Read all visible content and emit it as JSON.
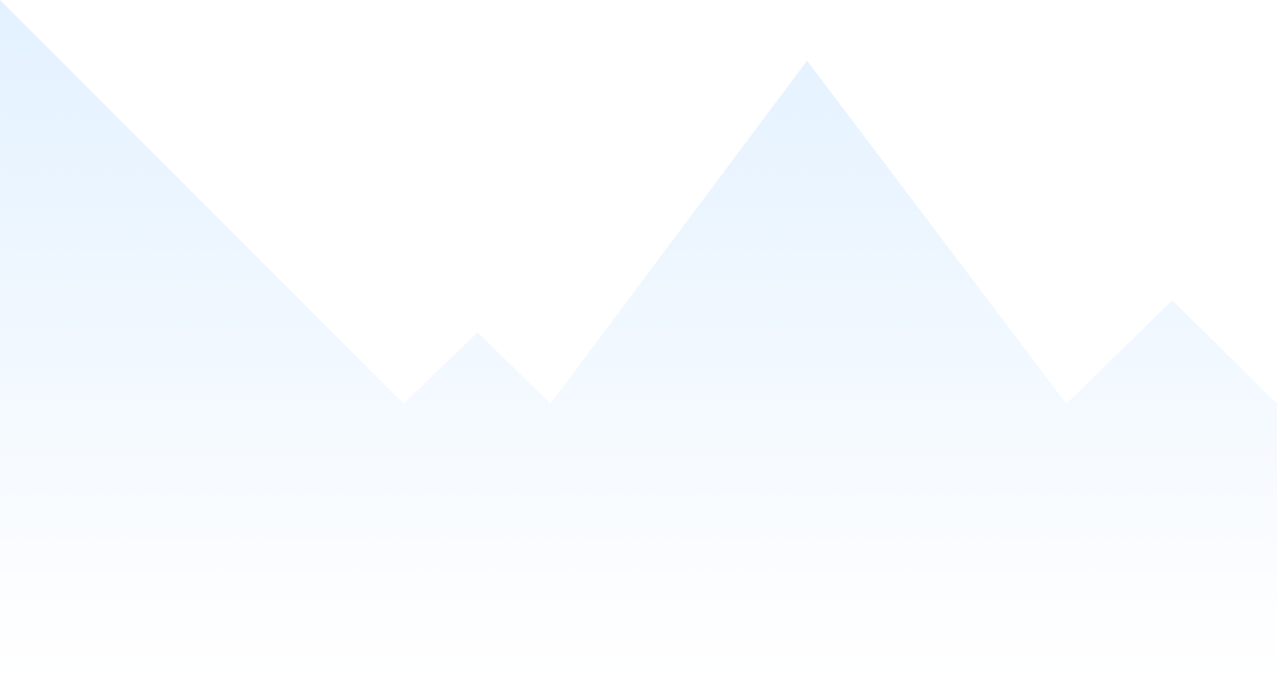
{
  "chart_data": {
    "type": "area",
    "title": "",
    "xlabel": "",
    "ylabel": "",
    "x": [
      0,
      1,
      2,
      3,
      4,
      5,
      6,
      7
    ],
    "series": [
      {
        "values": [
          100,
          39.5,
          50.2,
          39.5,
          90.9,
          39.5,
          55,
          39.5
        ]
      }
    ],
    "ylim": [
      0,
      100
    ],
    "grid": false,
    "legend": "none",
    "colors": {
      "fill_top": "#e3f1ff",
      "fill_bottom": "#ffffff",
      "background": "#ffffff"
    }
  }
}
